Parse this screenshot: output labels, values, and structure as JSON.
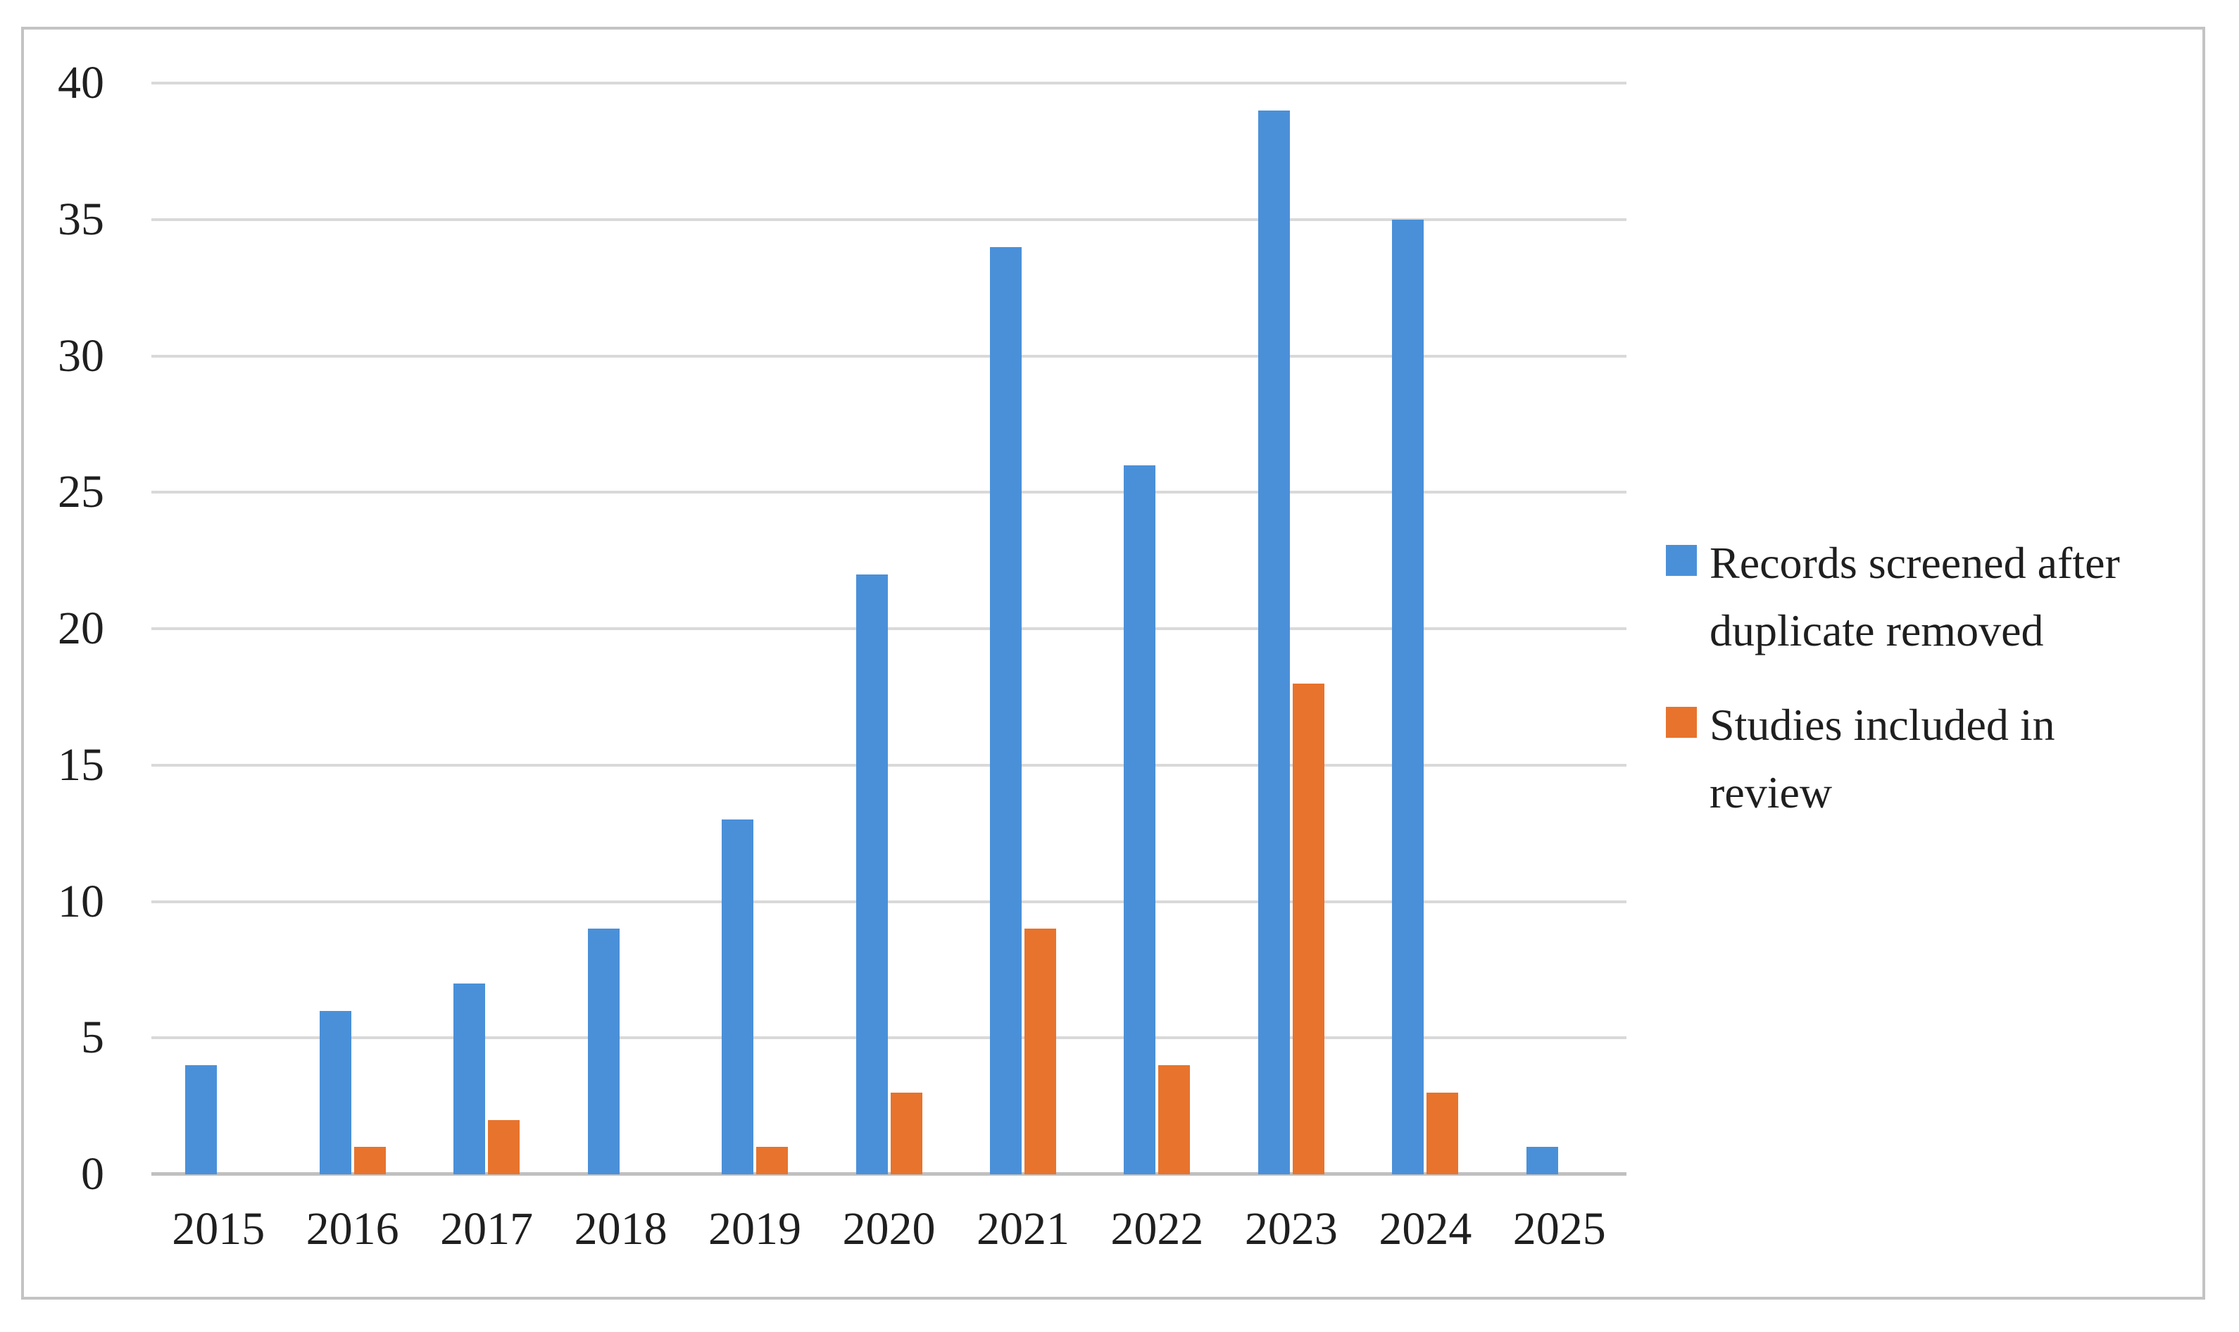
{
  "chart_data": {
    "type": "bar",
    "title": "",
    "xlabel": "",
    "ylabel": "",
    "categories": [
      "2015",
      "2016",
      "2017",
      "2018",
      "2019",
      "2020",
      "2021",
      "2022",
      "2023",
      "2024",
      "2025"
    ],
    "series": [
      {
        "name": "Records screened after duplicate removed",
        "color": "#4a90d9",
        "values": [
          4,
          6,
          7,
          9,
          13,
          22,
          34,
          26,
          39,
          35,
          1
        ]
      },
      {
        "name": "Studies included in review",
        "color": "#e8732c",
        "values": [
          0,
          1,
          2,
          0,
          1,
          3,
          9,
          4,
          18,
          3,
          0
        ]
      }
    ],
    "ylim": [
      0,
      40
    ],
    "ytick_step": 5,
    "ytick_labels": [
      "0",
      "5",
      "10",
      "15",
      "20",
      "25",
      "30",
      "35",
      "40"
    ],
    "grid": "horizontal",
    "legend_position": "right"
  },
  "figure": {
    "background_color": "#ffffff",
    "border_color": "#c3c3c3",
    "gridline_color": "#d9d9d9",
    "axis_line_color": "#c0c0c0",
    "text_color": "#1f1f1f"
  }
}
